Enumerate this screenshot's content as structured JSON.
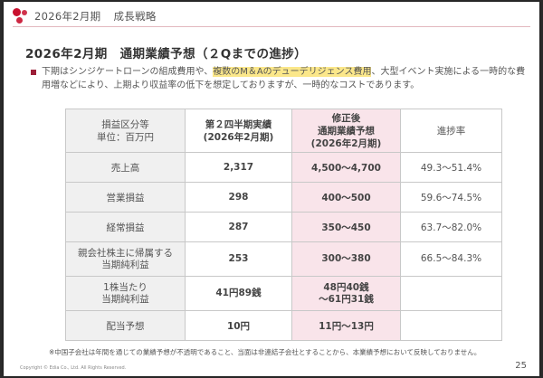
{
  "header": {
    "period": "2026年2月期",
    "section": "成長戦略"
  },
  "title": "2026年2月期　通期業績予想（２Qまでの進捗）",
  "note": {
    "before": "下期はシンジケートローンの組成費用や、",
    "highlight": "複数のM＆Aのデューデリジェンス費用",
    "after": "、大型イベント実施による一時的な費用増などにより、上期より収益率の低下を想定しておりますが、一時的なコストであります。"
  },
  "table": {
    "headers": {
      "c1": [
        "損益区分等",
        "単位：百万円"
      ],
      "c2": [
        "第２四半期実績",
        "(2026年2月期)"
      ],
      "c3": [
        "修正後",
        "通期業績予想",
        "(2026年2月期)"
      ],
      "c4": [
        "進捗率"
      ]
    },
    "rows": [
      {
        "label": [
          "売上高"
        ],
        "actual": [
          "2,317"
        ],
        "forecast": [
          "4,500～4,700"
        ],
        "progress": "49.3～51.4%"
      },
      {
        "label": [
          "営業損益"
        ],
        "actual": [
          "298"
        ],
        "forecast": [
          "400～500"
        ],
        "progress": "59.6～74.5%"
      },
      {
        "label": [
          "経常損益"
        ],
        "actual": [
          "287"
        ],
        "forecast": [
          "350～450"
        ],
        "progress": "63.7～82.0%"
      },
      {
        "label": [
          "親会社株主に帰属する",
          "当期純利益"
        ],
        "actual": [
          "253"
        ],
        "forecast": [
          "300～380"
        ],
        "progress": "66.5～84.3%"
      },
      {
        "label": [
          "1株当たり",
          "当期純利益"
        ],
        "actual": [
          "41円89銭"
        ],
        "forecast": [
          "48円40銭",
          "～61円31銭"
        ],
        "progress": ""
      },
      {
        "label": [
          "配当予想"
        ],
        "actual": [
          "10円"
        ],
        "forecast": [
          "11円～13円"
        ],
        "progress": ""
      }
    ]
  },
  "footnote": "※中国子会社は年間を通じての業績予想が不透明であること、当面は非連結子会社とすることから、本業績予想において反映しておりません。",
  "copyright": "Copyright © Edia Co., Ltd. All Rights Reserved.",
  "page_number": "25",
  "colors": {
    "accent": "#c8102e",
    "forecast_bg": "#f9e4ea",
    "highlight": "#fbe78a"
  }
}
